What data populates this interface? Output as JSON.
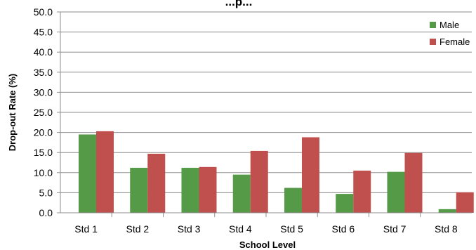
{
  "chart_data": {
    "type": "bar",
    "title": "...p...",
    "xlabel": "School Level",
    "ylabel": "Drop-out Rate (%)",
    "categories": [
      "Std 1",
      "Std 2",
      "Std 3",
      "Std 4",
      "Std 5",
      "Std 6",
      "Std 7",
      "Std 8"
    ],
    "series": [
      {
        "name": "Male",
        "color": "#559a47",
        "values": [
          19.5,
          11.2,
          11.2,
          9.5,
          6.2,
          4.7,
          10.2,
          0.9
        ]
      },
      {
        "name": "Female",
        "color": "#c0504d",
        "values": [
          20.3,
          14.7,
          11.4,
          15.4,
          18.8,
          10.5,
          14.9,
          5.1
        ]
      }
    ],
    "ylim": [
      0,
      50
    ],
    "yticks": [
      "0.0",
      "5.0",
      "10.0",
      "15.0",
      "20.0",
      "25.0",
      "30.0",
      "35.0",
      "40.0",
      "45.0",
      "50.0"
    ],
    "grid": true,
    "legend_position": "top-right"
  }
}
